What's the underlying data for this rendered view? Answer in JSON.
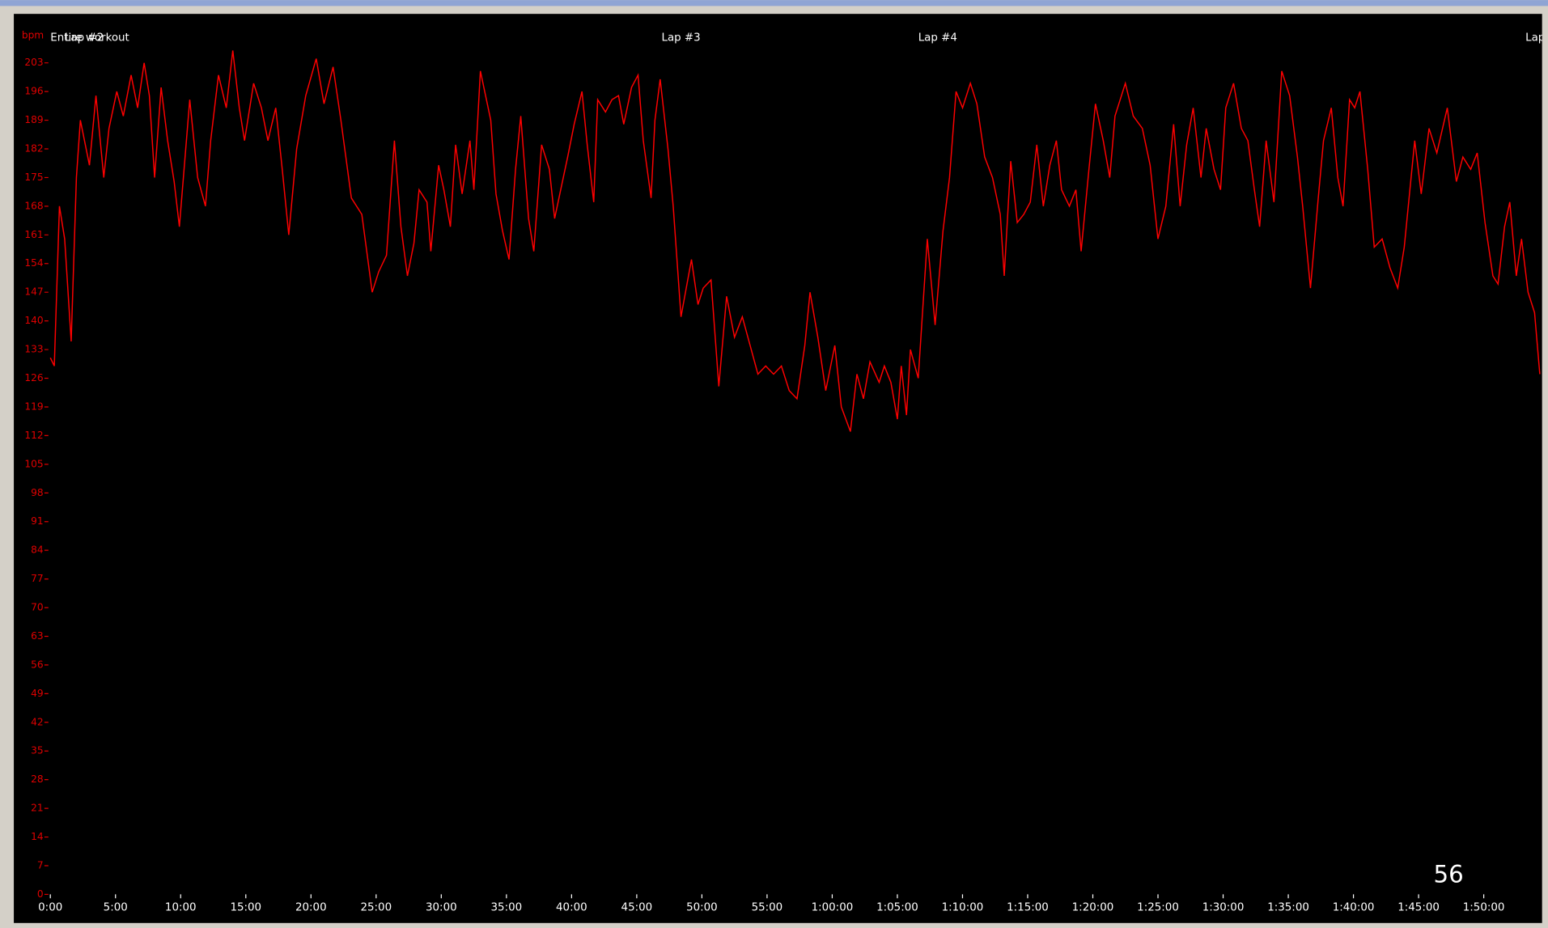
{
  "chart_data": {
    "type": "line",
    "y_axis_label": "bpm",
    "xlim": [
      0,
      114.4
    ],
    "ylim": [
      0,
      207
    ],
    "yticks": [
      0,
      7,
      14,
      21,
      28,
      35,
      42,
      49,
      56,
      63,
      70,
      77,
      84,
      91,
      98,
      105,
      112,
      119,
      126,
      133,
      140,
      147,
      154,
      161,
      168,
      175,
      182,
      189,
      196,
      203
    ],
    "xticks": [
      {
        "value": 0,
        "label": "0:00"
      },
      {
        "value": 5,
        "label": "5:00"
      },
      {
        "value": 10,
        "label": "10:00"
      },
      {
        "value": 15,
        "label": "15:00"
      },
      {
        "value": 20,
        "label": "20:00"
      },
      {
        "value": 25,
        "label": "25:00"
      },
      {
        "value": 30,
        "label": "30:00"
      },
      {
        "value": 35,
        "label": "35:00"
      },
      {
        "value": 40,
        "label": "40:00"
      },
      {
        "value": 45,
        "label": "45:00"
      },
      {
        "value": 50,
        "label": "50:00"
      },
      {
        "value": 55,
        "label": "55:00"
      },
      {
        "value": 60,
        "label": "1:00:00"
      },
      {
        "value": 65,
        "label": "1:05:00"
      },
      {
        "value": 70,
        "label": "1:10:00"
      },
      {
        "value": 75,
        "label": "1:15:00"
      },
      {
        "value": 80,
        "label": "1:20:00"
      },
      {
        "value": 85,
        "label": "1:25:00"
      },
      {
        "value": 90,
        "label": "1:30:00"
      },
      {
        "value": 95,
        "label": "1:35:00"
      },
      {
        "value": 100,
        "label": "1:40:00"
      },
      {
        "value": 105,
        "label": "1:45:00"
      },
      {
        "value": 110,
        "label": "1:50:00"
      }
    ],
    "laps": [
      {
        "value": 0,
        "label": "Entire workout"
      },
      {
        "value": 1.1,
        "label": "Lap #2"
      },
      {
        "value": 46.9,
        "label": "Lap #3"
      },
      {
        "value": 66.6,
        "label": "Lap #4"
      },
      {
        "value": 113.2,
        "label": "Lap"
      }
    ],
    "color": "#ff0000",
    "x": [
      0,
      0.3,
      0.7,
      1.1,
      1.6,
      2.0,
      2.3,
      3.0,
      3.5,
      4.1,
      4.5,
      5.1,
      5.6,
      6.2,
      6.7,
      7.2,
      7.6,
      8.0,
      8.5,
      9.0,
      9.5,
      9.9,
      10.7,
      11.3,
      11.9,
      12.3,
      12.9,
      13.5,
      14.0,
      14.5,
      14.9,
      15.6,
      16.2,
      16.7,
      17.3,
      17.8,
      18.3,
      18.9,
      19.6,
      20.4,
      21.0,
      21.7,
      22.3,
      23.1,
      23.9,
      24.7,
      25.2,
      25.8,
      26.4,
      26.9,
      27.4,
      27.9,
      28.3,
      28.9,
      29.2,
      29.8,
      30.2,
      30.7,
      31.1,
      31.6,
      32.2,
      32.5,
      33.0,
      33.8,
      34.2,
      34.7,
      35.2,
      35.7,
      36.1,
      36.7,
      37.1,
      37.7,
      38.3,
      38.7,
      39.3,
      39.7,
      40.2,
      40.8,
      41.2,
      41.7,
      42.0,
      42.6,
      43.1,
      43.6,
      44.0,
      44.6,
      45.1,
      45.5,
      46.1,
      46.4,
      46.8,
      47.4,
      47.8,
      48.4,
      49.2,
      49.7,
      50.1,
      50.7,
      51.3,
      51.9,
      52.5,
      53.1,
      53.7,
      54.3,
      54.9,
      55.5,
      56.1,
      56.7,
      57.3,
      57.9,
      58.3,
      58.9,
      59.5,
      60.2,
      60.7,
      61.4,
      61.9,
      62.4,
      62.9,
      63.6,
      64.0,
      64.5,
      65.0,
      65.3,
      65.7,
      66.0,
      66.6,
      67.3,
      67.9,
      68.5,
      69.0,
      69.5,
      70.0,
      70.6,
      71.1,
      71.7,
      72.3,
      72.9,
      73.2,
      73.7,
      74.2,
      74.7,
      75.2,
      75.7,
      76.2,
      76.7,
      77.2,
      77.6,
      78.2,
      78.7,
      79.1,
      79.7,
      80.2,
      80.8,
      81.3,
      81.7,
      82.5,
      83.1,
      83.8,
      84.4,
      85.0,
      85.6,
      86.2,
      86.7,
      87.2,
      87.7,
      88.3,
      88.7,
      89.3,
      89.8,
      90.2,
      90.8,
      91.4,
      91.9,
      92.4,
      92.8,
      93.3,
      93.9,
      94.5,
      95.1,
      95.7,
      96.1,
      96.7,
      97.3,
      97.7,
      98.3,
      98.8,
      99.2,
      99.7,
      100.1,
      100.5,
      101.1,
      101.6,
      102.2,
      102.8,
      103.4,
      103.9,
      104.7,
      105.2,
      105.8,
      106.4,
      107.2,
      107.9,
      108.4,
      109.0,
      109.5,
      110.1,
      110.7,
      111.1,
      111.6,
      112.0,
      112.5,
      112.9,
      113.4,
      113.9,
      114.3
    ],
    "values": [
      131,
      129,
      168,
      160,
      135,
      175,
      189,
      178,
      195,
      175,
      187,
      196,
      190,
      200,
      192,
      203,
      195,
      175,
      197,
      184,
      174,
      163,
      194,
      175,
      168,
      184,
      200,
      192,
      206,
      192,
      184,
      198,
      192,
      184,
      192,
      177,
      161,
      182,
      195,
      204,
      193,
      202,
      189,
      170,
      166,
      147,
      152,
      156,
      184,
      163,
      151,
      159,
      172,
      169,
      157,
      178,
      172,
      163,
      183,
      171,
      184,
      172,
      201,
      189,
      171,
      162,
      155,
      177,
      190,
      165,
      157,
      183,
      177,
      165,
      174,
      180,
      188,
      196,
      183,
      169,
      194,
      191,
      194,
      195,
      188,
      197,
      200,
      184,
      170,
      189,
      199,
      182,
      168,
      141,
      155,
      144,
      148,
      150,
      124,
      146,
      136,
      141,
      134,
      127,
      129,
      127,
      129,
      123,
      121,
      134,
      147,
      136,
      123,
      134,
      119,
      113,
      127,
      121,
      130,
      125,
      129,
      125,
      116,
      129,
      117,
      133,
      126,
      160,
      139,
      162,
      175,
      196,
      192,
      198,
      193,
      180,
      175,
      166,
      151,
      179,
      164,
      166,
      169,
      183,
      168,
      178,
      184,
      172,
      168,
      172,
      157,
      177,
      193,
      184,
      175,
      190,
      198,
      190,
      187,
      178,
      160,
      168,
      188,
      168,
      183,
      192,
      175,
      187,
      177,
      172,
      192,
      198,
      187,
      184,
      172,
      163,
      184,
      169,
      201,
      195,
      180,
      168,
      148,
      170,
      184,
      192,
      175,
      168,
      194,
      192,
      196,
      177,
      158,
      160,
      153,
      148,
      158,
      184,
      171,
      187,
      181,
      192,
      174,
      180,
      177,
      181,
      164,
      151,
      149,
      163,
      169,
      151,
      160,
      147,
      142,
      127
    ]
  },
  "page_number": "56"
}
